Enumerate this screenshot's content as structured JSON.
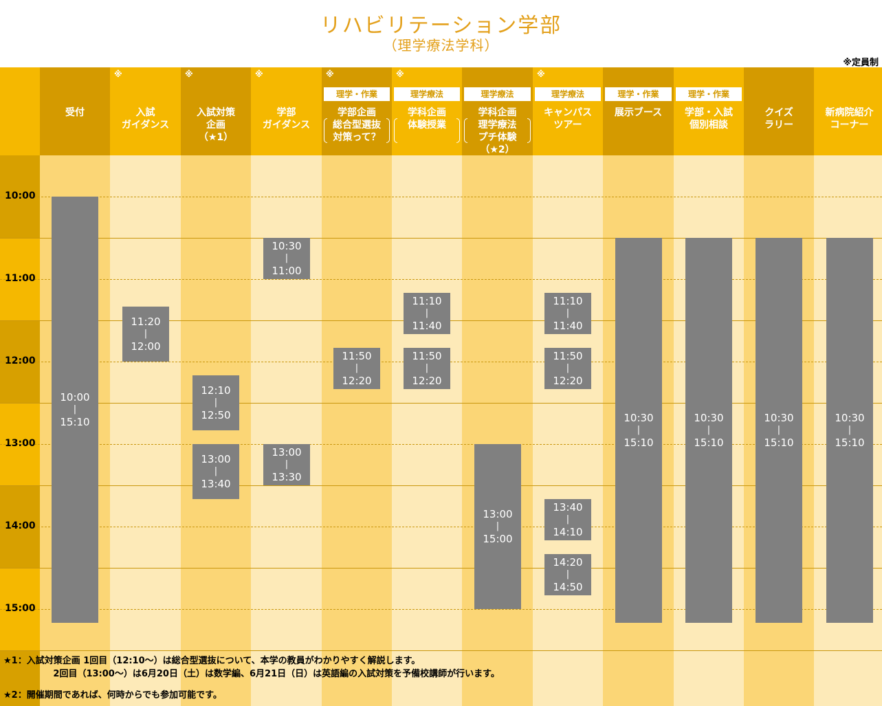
{
  "title": "リハビリテーション学部",
  "subtitle": "（理学療法学科）",
  "capacity_note": "※定員制",
  "colors": {
    "title": "#E3A01B",
    "block": "#808080",
    "accent_dark": "#D49A00"
  },
  "columns": [
    {
      "label": "受付",
      "asterisk": "",
      "badge": ""
    },
    {
      "label": "入試\nガイダンス",
      "asterisk": "※",
      "badge": ""
    },
    {
      "label": "入試対策\n企画\n（★1）",
      "asterisk": "※",
      "badge": ""
    },
    {
      "label": "学部\nガイダンス",
      "asterisk": "※",
      "badge": ""
    },
    {
      "label": "学部企画\n総合型選抜\n対策って？",
      "asterisk": "※",
      "badge": "理学・作業"
    },
    {
      "label": "学科企画\n体験授業",
      "asterisk": "※",
      "badge": "理学療法"
    },
    {
      "label": "学科企画\n理学療法\nプチ体験\n（★2）",
      "asterisk": "",
      "badge": "理学療法"
    },
    {
      "label": "キャンパス\nツアー",
      "asterisk": "※",
      "badge": "理学療法"
    },
    {
      "label": "展示ブース",
      "asterisk": "",
      "badge": "理学・作業"
    },
    {
      "label": "学部・入試\n個別相談",
      "asterisk": "",
      "badge": "理学・作業"
    },
    {
      "label": "クイズ\nラリー",
      "asterisk": "",
      "badge": ""
    },
    {
      "label": "新病院紹介\nコーナー",
      "asterisk": "",
      "badge": ""
    }
  ],
  "times": [
    "10:00",
    "11:00",
    "12:00",
    "13:00",
    "14:00",
    "15:00"
  ],
  "schedule_start": "9:30",
  "schedule_end": "16:30",
  "events": [
    {
      "col": 0,
      "start": "10:00",
      "end": "15:10"
    },
    {
      "col": 1,
      "start": "11:20",
      "end": "12:00"
    },
    {
      "col": 2,
      "start": "12:10",
      "end": "12:50"
    },
    {
      "col": 2,
      "start": "13:00",
      "end": "13:40"
    },
    {
      "col": 3,
      "start": "10:30",
      "end": "11:00"
    },
    {
      "col": 3,
      "start": "13:00",
      "end": "13:30"
    },
    {
      "col": 4,
      "start": "11:50",
      "end": "12:20"
    },
    {
      "col": 5,
      "start": "11:10",
      "end": "11:40"
    },
    {
      "col": 5,
      "start": "11:50",
      "end": "12:20"
    },
    {
      "col": 6,
      "start": "13:00",
      "end": "15:00"
    },
    {
      "col": 7,
      "start": "11:10",
      "end": "11:40"
    },
    {
      "col": 7,
      "start": "11:50",
      "end": "12:20"
    },
    {
      "col": 7,
      "start": "13:40",
      "end": "14:10"
    },
    {
      "col": 7,
      "start": "14:20",
      "end": "14:50"
    },
    {
      "col": 8,
      "start": "10:30",
      "end": "15:10"
    },
    {
      "col": 9,
      "start": "10:30",
      "end": "15:10"
    },
    {
      "col": 10,
      "start": "10:30",
      "end": "15:10"
    },
    {
      "col": 11,
      "start": "10:30",
      "end": "15:10"
    }
  ],
  "separator": "|",
  "footnotes": [
    "★1：入試対策企画 1回目（12:10～）は総合型選抜について、本学の教員がわかりやすく解説します。",
    "                2回目（13:00～）は6月20日（土）は数学編、6月21日（日）は英語編の入試対策を予備校講師が行います。",
    "★2：開催期間であれば、何時からでも参加可能です。"
  ]
}
